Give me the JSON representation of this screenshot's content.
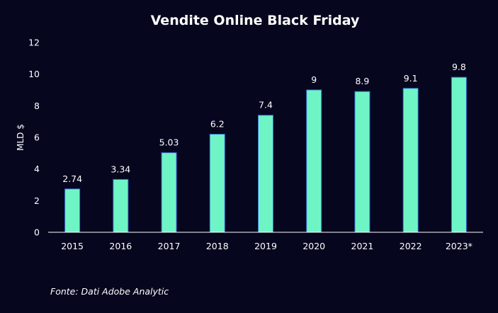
{
  "chart_data": {
    "type": "bar",
    "title": "Vendite Online Black Friday",
    "ylabel": "MLD $",
    "xlabel": "",
    "categories": [
      "2015",
      "2016",
      "2017",
      "2018",
      "2019",
      "2020",
      "2021",
      "2022",
      "2023*"
    ],
    "values": [
      2.74,
      3.34,
      5.03,
      6.2,
      7.4,
      9,
      8.9,
      9.1,
      9.8
    ],
    "value_labels": [
      "2.74",
      "3.34",
      "5.03",
      "6.2",
      "7.4",
      "9",
      "8.9",
      "9.1",
      "9.8"
    ],
    "ylim": [
      0,
      12
    ],
    "yticks": [
      0,
      2,
      4,
      6,
      8,
      10,
      12
    ],
    "grid": false,
    "legend": "none",
    "colors": {
      "bar": "#6ff5c5",
      "bar_edge": "#3a6fd8",
      "background": "#06061f",
      "text": "#ffffff",
      "axis": "#ffffff"
    }
  },
  "source_note": "Fonte: Dati Adobe Analytic"
}
